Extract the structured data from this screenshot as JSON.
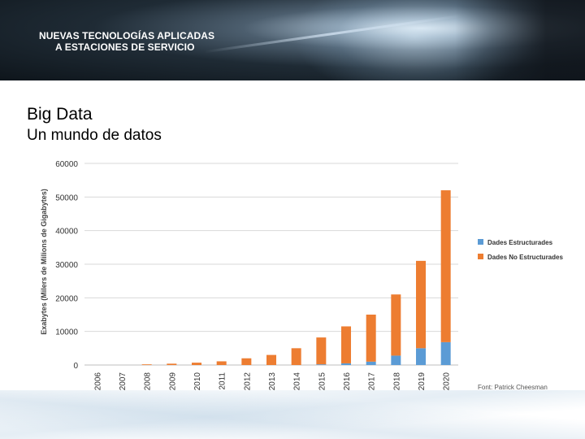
{
  "banner": {
    "line1": "NUEVAS TECNOLOGÍAS APLICADAS",
    "line2": "A   ESTACIONES DE SERVICIO"
  },
  "slide": {
    "title": "Big Data",
    "subtitle": "Un mundo de datos"
  },
  "chart_data": {
    "type": "bar",
    "stacked": true,
    "categories": [
      "2006",
      "2007",
      "2008",
      "2009",
      "2010",
      "2011",
      "2012",
      "2013",
      "2014",
      "2015",
      "2016",
      "2017",
      "2018",
      "2019",
      "2020"
    ],
    "series": [
      {
        "name": "Dades Estructurades",
        "color": "#5b9bd5",
        "values": [
          0,
          0,
          0,
          0,
          0,
          0,
          0,
          0,
          0,
          200,
          500,
          1000,
          2800,
          5000,
          6800
        ]
      },
      {
        "name": "Dades No Estructurades",
        "color": "#ed7d31",
        "values": [
          0,
          0,
          200,
          400,
          700,
          1100,
          2000,
          3000,
          5000,
          8000,
          11000,
          14000,
          18200,
          26000,
          45200
        ]
      }
    ],
    "ylabel": "Exabytes (Milers de Milions de Gigabytes)",
    "ylim": [
      0,
      60000
    ],
    "yticks": [
      0,
      10000,
      20000,
      30000,
      40000,
      50000,
      60000
    ],
    "ytick_labels": [
      "0",
      "10000",
      "20000",
      "30000",
      "40000",
      "50000",
      "60000"
    ],
    "grid": true,
    "legend_position": "right",
    "source": "Font: Patrick Cheesman"
  }
}
